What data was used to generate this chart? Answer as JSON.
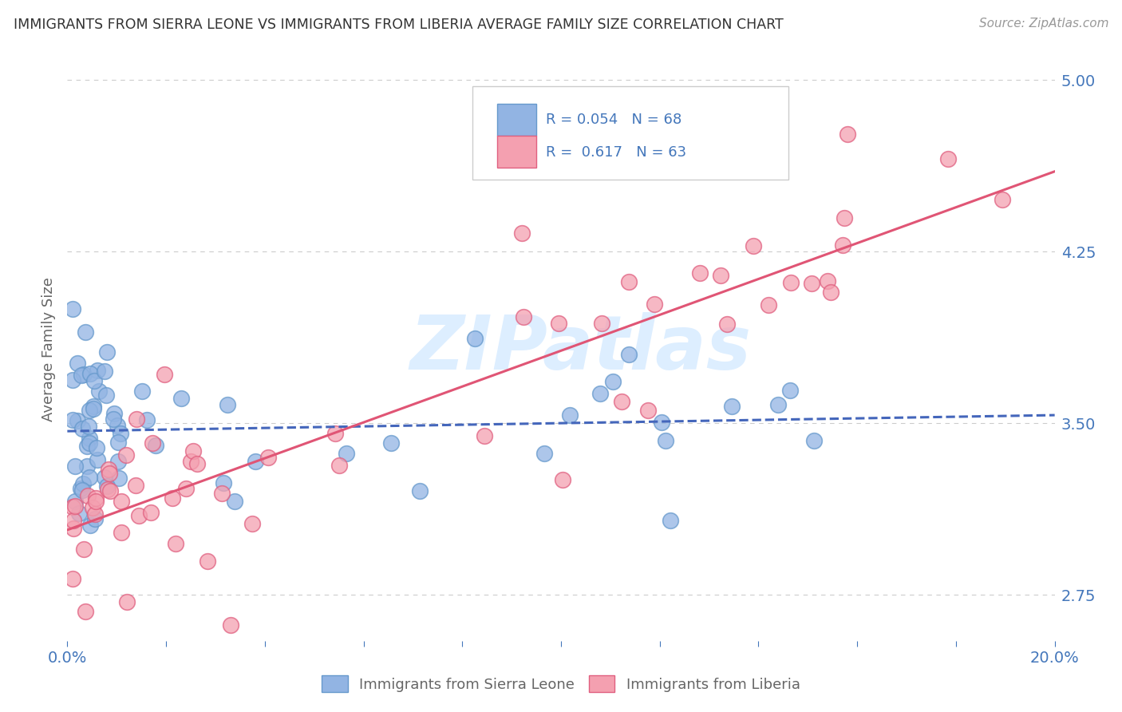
{
  "title": "IMMIGRANTS FROM SIERRA LEONE VS IMMIGRANTS FROM LIBERIA AVERAGE FAMILY SIZE CORRELATION CHART",
  "source": "Source: ZipAtlas.com",
  "ylabel": "Average Family Size",
  "xlim": [
    0.0,
    0.2
  ],
  "ylim": [
    2.55,
    5.1
  ],
  "yticks": [
    2.75,
    3.5,
    4.25,
    5.0
  ],
  "sierra_leone_R": 0.054,
  "sierra_leone_N": 68,
  "liberia_R": 0.617,
  "liberia_N": 63,
  "sierra_leone_color": "#92B4E3",
  "liberia_color": "#F4A0B0",
  "sierra_leone_edge": "#6699CC",
  "liberia_edge": "#E06080",
  "sierra_leone_line_color": "#4466BB",
  "liberia_line_color": "#E05575",
  "background_color": "#FFFFFF",
  "grid_color": "#CCCCCC",
  "title_color": "#333333",
  "axis_label_color": "#666666",
  "tick_color": "#4477BB",
  "legend_box_facecolor": "#F0F5FF",
  "legend_box_edgecolor": "#BBCCDD",
  "watermark_color": "#DDEEFF",
  "legend_text_color": "#4477BB",
  "legend_r_color": "#4477BB",
  "legend_n_color": "#4477BB"
}
